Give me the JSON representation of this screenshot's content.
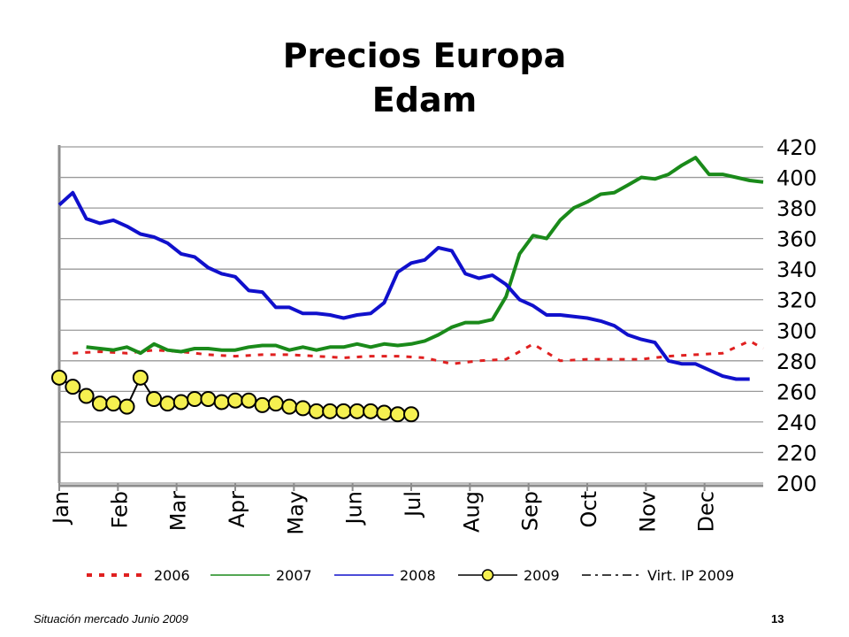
{
  "chart_data": {
    "type": "line",
    "title": [
      "Precios Europa",
      "Edam"
    ],
    "xlabel": "",
    "ylabel": "",
    "ylim": [
      200,
      420
    ],
    "yticks": [
      200,
      220,
      240,
      260,
      280,
      300,
      320,
      340,
      360,
      380,
      400,
      420
    ],
    "months": [
      "Jan",
      "Feb",
      "Mar",
      "Apr",
      "May",
      "Jun",
      "Jul",
      "Aug",
      "Sep",
      "Oct",
      "Nov",
      "Dec"
    ],
    "x_unit": "week",
    "grid": "horizontal",
    "legend_position": "bottom",
    "series": [
      {
        "name": "2006",
        "color": "#e02020",
        "style": "dotted",
        "x": [
          1,
          3,
          5,
          7,
          9,
          11,
          13,
          15,
          17,
          19,
          21,
          23,
          25,
          27,
          29,
          31,
          33,
          35,
          37,
          39,
          41,
          43,
          45,
          47,
          49,
          51,
          52
        ],
        "values": [
          285,
          286,
          285,
          287,
          286,
          284,
          283,
          284,
          284,
          283,
          282,
          283,
          283,
          282,
          278,
          280,
          281,
          291,
          280,
          281,
          281,
          281,
          283,
          284,
          285,
          293,
          288
        ]
      },
      {
        "name": "2007",
        "color": "#1a8a1a",
        "style": "solid",
        "x": [
          2,
          3,
          4,
          5,
          6,
          7,
          8,
          9,
          10,
          11,
          12,
          13,
          14,
          15,
          16,
          17,
          18,
          19,
          20,
          21,
          22,
          23,
          24,
          25,
          26,
          27,
          28,
          29,
          30,
          31,
          32,
          33,
          34,
          35,
          36,
          37,
          38,
          39,
          40,
          41,
          42,
          43,
          44,
          45,
          46,
          47,
          48,
          49,
          50,
          51,
          52
        ],
        "values": [
          289,
          288,
          287,
          289,
          285,
          291,
          287,
          286,
          288,
          288,
          287,
          287,
          289,
          290,
          290,
          287,
          289,
          287,
          289,
          289,
          291,
          289,
          291,
          290,
          291,
          293,
          297,
          302,
          305,
          305,
          307,
          322,
          350,
          362,
          360,
          372,
          380,
          384,
          389,
          390,
          395,
          400,
          399,
          402,
          408,
          413,
          402,
          402,
          400,
          398,
          397
        ]
      },
      {
        "name": "2008",
        "color": "#1010cc",
        "style": "solid",
        "x": [
          0,
          1,
          2,
          3,
          4,
          5,
          6,
          7,
          8,
          9,
          10,
          11,
          12,
          13,
          14,
          15,
          16,
          17,
          18,
          19,
          20,
          21,
          22,
          23,
          24,
          25,
          26,
          27,
          28,
          29,
          30,
          31,
          32,
          33,
          34,
          35,
          36,
          37,
          38,
          39,
          40,
          41,
          42,
          43,
          44,
          45,
          46,
          47,
          48,
          49,
          50,
          51
        ],
        "values": [
          382,
          390,
          373,
          370,
          372,
          368,
          363,
          361,
          357,
          350,
          348,
          341,
          337,
          335,
          326,
          325,
          315,
          315,
          311,
          311,
          310,
          308,
          310,
          311,
          318,
          338,
          344,
          346,
          354,
          352,
          337,
          334,
          336,
          330,
          320,
          316,
          310,
          310,
          309,
          308,
          306,
          303,
          297,
          294,
          292,
          280,
          278,
          278,
          274,
          270,
          268,
          268
        ]
      },
      {
        "name": "2009",
        "color": "#f5f050",
        "style": "markers",
        "x": [
          0,
          1,
          2,
          3,
          4,
          5,
          6,
          7,
          8,
          9,
          10,
          11,
          12,
          13,
          14,
          15,
          16,
          17,
          18,
          19,
          20,
          21,
          22,
          23,
          24,
          25,
          26
        ],
        "values": [
          269,
          263,
          257,
          252,
          252,
          250,
          269,
          255,
          252,
          253,
          255,
          255,
          253,
          254,
          254,
          251,
          252,
          250,
          249,
          247,
          247,
          247,
          247,
          247,
          246,
          245,
          245
        ]
      },
      {
        "name": "Virt. IP 2009",
        "color": "#000000",
        "style": "dashdot",
        "x": [],
        "values": []
      }
    ]
  },
  "footer": {
    "source": "Situación mercado Junio 2009",
    "page": "13"
  }
}
